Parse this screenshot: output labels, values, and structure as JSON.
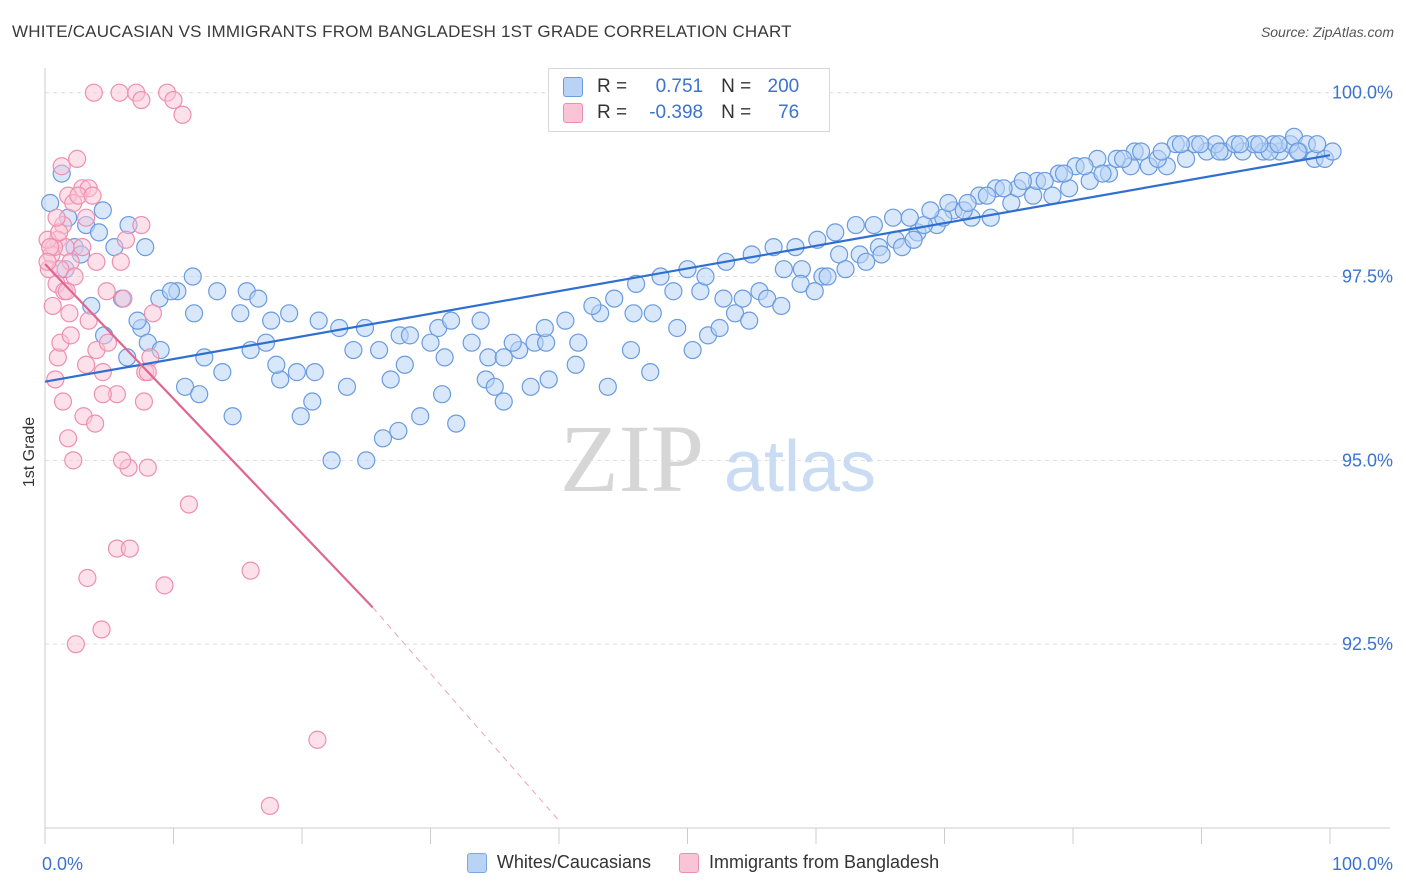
{
  "title": "WHITE/CAUCASIAN VS IMMIGRANTS FROM BANGLADESH 1ST GRADE CORRELATION CHART",
  "source": "Source: ZipAtlas.com",
  "watermark": {
    "zip": "ZIP",
    "atlas": "atlas"
  },
  "stats": {
    "blue": {
      "r_label": "R =",
      "r_value": "0.751",
      "n_label": "N =",
      "n_value": "200"
    },
    "pink": {
      "r_label": "R =",
      "r_value": "-0.398",
      "n_label": "N =",
      "n_value": "76"
    }
  },
  "colors": {
    "blue_fill": "#b8d3f5",
    "blue_stroke": "#6a9be0",
    "blue_line": "#2f6fd0",
    "pink_fill": "#f9c4d6",
    "pink_stroke": "#ee8fb0",
    "pink_line": "#e0668f",
    "axis_text": "#3b73d1",
    "grid": "#dddddd"
  },
  "chart_data": {
    "type": "scatter",
    "title": "WHITE/CAUCASIAN VS IMMIGRANTS FROM BANGLADESH 1ST GRADE CORRELATION CHART",
    "xlabel": "",
    "ylabel": "1st Grade",
    "xlim": [
      0,
      100
    ],
    "ylim": [
      90.0,
      100.2
    ],
    "x_tick_labels": [
      "0.0%",
      "100.0%"
    ],
    "y_ticks": [
      92.5,
      95.0,
      97.5,
      100.0
    ],
    "y_tick_labels": [
      "92.5%",
      "95.0%",
      "97.5%",
      "100.0%"
    ],
    "grid": true,
    "legend": [
      "Whites/Caucasians",
      "Immigrants from Bangladesh"
    ],
    "series": [
      {
        "name": "Whites/Caucasians",
        "trend": {
          "x": [
            0,
            100
          ],
          "y": [
            96.07,
            99.15
          ]
        },
        "points": [
          [
            0.4,
            98.5
          ],
          [
            1.3,
            98.9
          ],
          [
            1.8,
            98.3
          ],
          [
            2.3,
            97.9
          ],
          [
            3.2,
            98.2
          ],
          [
            4.5,
            98.4
          ],
          [
            4.2,
            98.1
          ],
          [
            5.4,
            97.9
          ],
          [
            6.5,
            98.2
          ],
          [
            7.8,
            97.9
          ],
          [
            1.6,
            97.6
          ],
          [
            2.8,
            97.8
          ],
          [
            3.6,
            97.1
          ],
          [
            4.6,
            96.7
          ],
          [
            6.4,
            96.4
          ],
          [
            7.5,
            96.8
          ],
          [
            8.9,
            97.2
          ],
          [
            10.3,
            97.3
          ],
          [
            11.6,
            97.0
          ],
          [
            13.4,
            97.3
          ],
          [
            15.7,
            97.3
          ],
          [
            16.6,
            97.2
          ],
          [
            17.6,
            96.9
          ],
          [
            19.0,
            97.0
          ],
          [
            21.3,
            96.9
          ],
          [
            22.9,
            96.8
          ],
          [
            24.9,
            96.8
          ],
          [
            26.0,
            96.5
          ],
          [
            27.6,
            96.7
          ],
          [
            28.4,
            96.7
          ],
          [
            30.6,
            96.8
          ],
          [
            31.6,
            96.9
          ],
          [
            33.2,
            96.6
          ],
          [
            34.5,
            96.4
          ],
          [
            35.7,
            96.4
          ],
          [
            36.9,
            96.5
          ],
          [
            38.1,
            96.6
          ],
          [
            39.0,
            96.6
          ],
          [
            41.5,
            96.6
          ],
          [
            43.2,
            97.0
          ],
          [
            45.8,
            97.0
          ],
          [
            47.3,
            97.0
          ],
          [
            48.9,
            97.3
          ],
          [
            51.0,
            97.3
          ],
          [
            52.8,
            97.2
          ],
          [
            54.3,
            97.2
          ],
          [
            55.6,
            97.3
          ],
          [
            57.5,
            97.6
          ],
          [
            58.9,
            97.6
          ],
          [
            60.5,
            97.5
          ],
          [
            61.8,
            97.8
          ],
          [
            63.4,
            97.8
          ],
          [
            64.9,
            97.9
          ],
          [
            66.2,
            98.0
          ],
          [
            67.9,
            98.1
          ],
          [
            69.4,
            98.2
          ],
          [
            70.7,
            98.4
          ],
          [
            72.1,
            98.3
          ],
          [
            73.6,
            98.3
          ],
          [
            75.2,
            98.5
          ],
          [
            76.9,
            98.6
          ],
          [
            78.4,
            98.6
          ],
          [
            79.7,
            98.7
          ],
          [
            81.3,
            98.8
          ],
          [
            82.8,
            98.9
          ],
          [
            84.5,
            99.0
          ],
          [
            85.9,
            99.0
          ],
          [
            87.3,
            99.0
          ],
          [
            88.8,
            99.1
          ],
          [
            90.4,
            99.2
          ],
          [
            91.7,
            99.2
          ],
          [
            93.2,
            99.2
          ],
          [
            94.8,
            99.2
          ],
          [
            96.1,
            99.2
          ],
          [
            97.6,
            99.2
          ],
          [
            98.8,
            99.1
          ],
          [
            99.6,
            99.1
          ],
          [
            100.2,
            99.2
          ],
          [
            96.9,
            99.3
          ],
          [
            95.6,
            99.3
          ],
          [
            8.0,
            96.6
          ],
          [
            10.9,
            96.0
          ],
          [
            12.4,
            96.4
          ],
          [
            14.6,
            95.6
          ],
          [
            16.0,
            96.5
          ],
          [
            18.3,
            96.1
          ],
          [
            19.6,
            96.2
          ],
          [
            20.8,
            95.8
          ],
          [
            22.3,
            95.0
          ],
          [
            25.0,
            95.0
          ],
          [
            26.3,
            95.3
          ],
          [
            27.5,
            95.4
          ],
          [
            29.2,
            95.6
          ],
          [
            30.9,
            95.9
          ],
          [
            32.0,
            95.5
          ],
          [
            34.3,
            96.1
          ],
          [
            35.0,
            96.0
          ],
          [
            35.7,
            95.8
          ],
          [
            37.8,
            96.0
          ],
          [
            39.2,
            96.1
          ],
          [
            41.3,
            96.3
          ],
          [
            43.8,
            96.0
          ],
          [
            45.6,
            96.5
          ],
          [
            47.1,
            96.2
          ],
          [
            49.2,
            96.8
          ],
          [
            50.4,
            96.5
          ],
          [
            51.6,
            96.7
          ],
          [
            52.5,
            96.8
          ],
          [
            53.7,
            97.0
          ],
          [
            54.8,
            96.9
          ],
          [
            56.2,
            97.2
          ],
          [
            57.3,
            97.1
          ],
          [
            58.8,
            97.4
          ],
          [
            59.9,
            97.3
          ],
          [
            60.9,
            97.5
          ],
          [
            62.3,
            97.6
          ],
          [
            63.9,
            97.7
          ],
          [
            65.1,
            97.8
          ],
          [
            66.7,
            97.9
          ],
          [
            67.6,
            98.0
          ],
          [
            68.4,
            98.2
          ],
          [
            69.9,
            98.3
          ],
          [
            71.5,
            98.4
          ],
          [
            72.7,
            98.6
          ],
          [
            74.0,
            98.7
          ],
          [
            75.7,
            98.7
          ],
          [
            77.2,
            98.8
          ],
          [
            78.9,
            98.9
          ],
          [
            80.2,
            99.0
          ],
          [
            81.9,
            99.1
          ],
          [
            83.4,
            99.1
          ],
          [
            84.8,
            99.2
          ],
          [
            86.6,
            99.1
          ],
          [
            88.0,
            99.3
          ],
          [
            89.5,
            99.3
          ],
          [
            91.1,
            99.3
          ],
          [
            92.6,
            99.3
          ],
          [
            94.1,
            99.3
          ],
          [
            95.3,
            99.2
          ],
          [
            97.2,
            99.4
          ],
          [
            98.2,
            99.3
          ],
          [
            99.0,
            99.3
          ],
          [
            9.8,
            97.3
          ],
          [
            11.5,
            97.5
          ],
          [
            15.2,
            97.0
          ],
          [
            18.0,
            96.3
          ],
          [
            21.0,
            96.2
          ],
          [
            23.5,
            96.0
          ],
          [
            28.0,
            96.3
          ],
          [
            31.1,
            96.4
          ],
          [
            33.9,
            96.9
          ],
          [
            36.4,
            96.6
          ],
          [
            38.9,
            96.8
          ],
          [
            40.5,
            96.9
          ],
          [
            42.6,
            97.1
          ],
          [
            44.3,
            97.2
          ],
          [
            46.0,
            97.4
          ],
          [
            47.9,
            97.5
          ],
          [
            50.0,
            97.6
          ],
          [
            51.4,
            97.5
          ],
          [
            53.0,
            97.7
          ],
          [
            55.0,
            97.8
          ],
          [
            56.7,
            97.9
          ],
          [
            58.4,
            97.9
          ],
          [
            60.1,
            98.0
          ],
          [
            61.5,
            98.1
          ],
          [
            63.1,
            98.2
          ],
          [
            64.5,
            98.2
          ],
          [
            66.0,
            98.3
          ],
          [
            67.3,
            98.3
          ],
          [
            68.9,
            98.4
          ],
          [
            70.3,
            98.5
          ],
          [
            71.8,
            98.5
          ],
          [
            73.3,
            98.6
          ],
          [
            74.6,
            98.7
          ],
          [
            76.1,
            98.8
          ],
          [
            77.8,
            98.8
          ],
          [
            79.3,
            98.9
          ],
          [
            80.9,
            99.0
          ],
          [
            82.3,
            98.9
          ],
          [
            83.9,
            99.1
          ],
          [
            85.3,
            99.2
          ],
          [
            86.9,
            99.2
          ],
          [
            88.4,
            99.3
          ],
          [
            89.9,
            99.3
          ],
          [
            91.4,
            99.2
          ],
          [
            93.0,
            99.3
          ],
          [
            94.5,
            99.3
          ],
          [
            96.0,
            99.3
          ],
          [
            97.5,
            99.2
          ],
          [
            6.0,
            97.2
          ],
          [
            7.2,
            96.9
          ],
          [
            9.0,
            96.5
          ],
          [
            12.0,
            95.9
          ],
          [
            13.8,
            96.2
          ],
          [
            17.2,
            96.6
          ],
          [
            19.9,
            95.6
          ],
          [
            24.0,
            96.5
          ],
          [
            26.9,
            96.1
          ],
          [
            30.0,
            96.6
          ]
        ]
      },
      {
        "name": "Immigrants from Bangladesh",
        "trend": {
          "x": [
            0,
            25.5,
            40
          ],
          "y": [
            97.67,
            93.0,
            90.1
          ],
          "solid_until_x": 25.5
        },
        "points": [
          [
            3.8,
            100.0
          ],
          [
            5.8,
            100.0
          ],
          [
            7.1,
            100.0
          ],
          [
            9.5,
            100.0
          ],
          [
            10.0,
            99.9
          ],
          [
            7.5,
            99.9
          ],
          [
            10.7,
            99.7
          ],
          [
            2.5,
            99.1
          ],
          [
            2.9,
            98.7
          ],
          [
            3.4,
            98.7
          ],
          [
            1.8,
            98.6
          ],
          [
            2.2,
            98.5
          ],
          [
            3.2,
            98.3
          ],
          [
            1.4,
            98.2
          ],
          [
            1.0,
            98.0
          ],
          [
            1.6,
            97.9
          ],
          [
            2.0,
            97.7
          ],
          [
            0.5,
            97.8
          ],
          [
            0.3,
            97.6
          ],
          [
            0.7,
            97.9
          ],
          [
            1.2,
            97.6
          ],
          [
            4.0,
            97.7
          ],
          [
            5.9,
            97.7
          ],
          [
            7.5,
            98.2
          ],
          [
            0.2,
            98.0
          ],
          [
            0.9,
            97.4
          ],
          [
            1.5,
            97.3
          ],
          [
            2.3,
            97.5
          ],
          [
            4.8,
            97.3
          ],
          [
            6.1,
            97.2
          ],
          [
            0.6,
            97.1
          ],
          [
            1.9,
            97.0
          ],
          [
            3.4,
            96.9
          ],
          [
            1.0,
            96.4
          ],
          [
            1.2,
            96.6
          ],
          [
            2.0,
            96.7
          ],
          [
            4.0,
            96.5
          ],
          [
            8.2,
            96.4
          ],
          [
            0.8,
            96.1
          ],
          [
            3.2,
            96.3
          ],
          [
            4.5,
            96.2
          ],
          [
            7.8,
            96.2
          ],
          [
            5.6,
            95.9
          ],
          [
            4.5,
            95.9
          ],
          [
            1.4,
            95.8
          ],
          [
            7.7,
            95.8
          ],
          [
            3.0,
            95.6
          ],
          [
            3.9,
            95.5
          ],
          [
            1.8,
            95.3
          ],
          [
            2.2,
            95.0
          ],
          [
            6.5,
            94.9
          ],
          [
            8.0,
            94.9
          ],
          [
            11.2,
            94.4
          ],
          [
            5.6,
            93.8
          ],
          [
            6.6,
            93.8
          ],
          [
            3.3,
            93.4
          ],
          [
            9.3,
            93.3
          ],
          [
            16.0,
            93.5
          ],
          [
            4.4,
            92.7
          ],
          [
            2.4,
            92.5
          ],
          [
            21.2,
            91.2
          ],
          [
            17.5,
            90.3
          ],
          [
            0.4,
            97.9
          ],
          [
            1.1,
            98.1
          ],
          [
            2.6,
            98.6
          ],
          [
            3.7,
            98.6
          ],
          [
            0.2,
            97.7
          ],
          [
            1.7,
            97.3
          ],
          [
            6.3,
            98.0
          ],
          [
            8.4,
            97.0
          ],
          [
            2.9,
            97.9
          ],
          [
            0.9,
            98.3
          ],
          [
            4.9,
            96.6
          ],
          [
            8.0,
            96.2
          ],
          [
            6.0,
            95.0
          ],
          [
            1.3,
            99.0
          ]
        ]
      }
    ]
  },
  "legend": {
    "blue_label": "Whites/Caucasians",
    "pink_label": "Immigrants from Bangladesh"
  }
}
